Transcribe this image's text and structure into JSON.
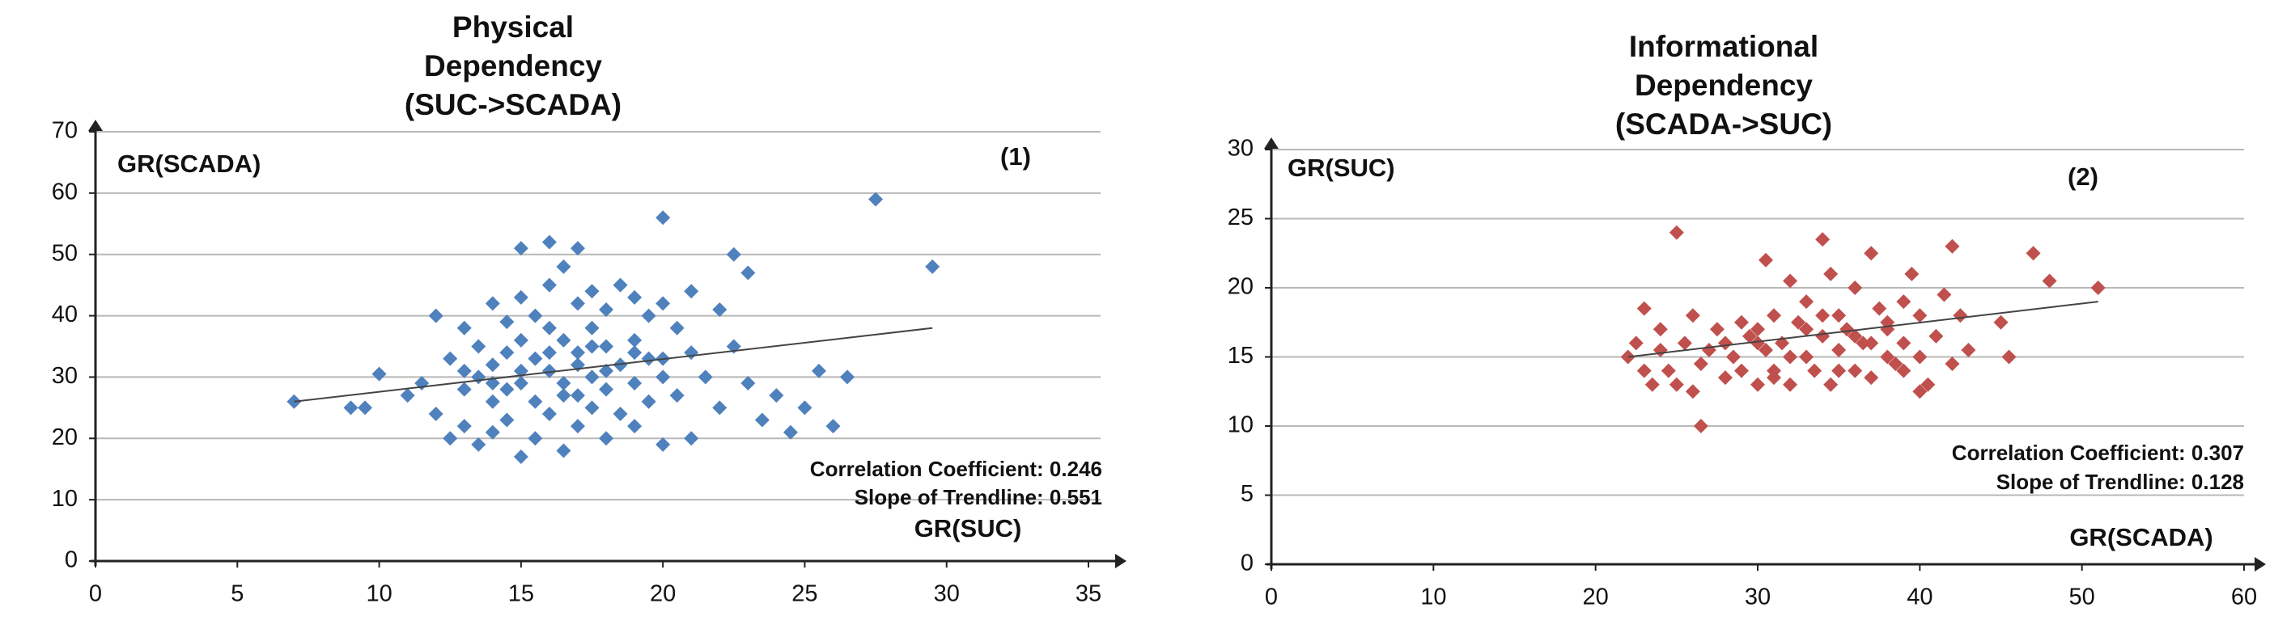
{
  "chart_data": [
    {
      "type": "scatter",
      "title": [
        "Physical",
        "Dependency",
        "(SUC->SCADA)"
      ],
      "x_label": "GR(SUC)",
      "y_label": "GR(SCADA)",
      "panel_label": "(1)",
      "annotations": [
        "Correlation Coefficient: 0.246",
        "Slope of Trendline: 0.551"
      ],
      "color": "#4f81bd",
      "grid": true,
      "xlim": [
        0,
        35
      ],
      "xticks": [
        0,
        5,
        10,
        15,
        20,
        25,
        30,
        35
      ],
      "ylim": [
        0,
        70
      ],
      "yticks": [
        0,
        10,
        20,
        30,
        40,
        50,
        60,
        70
      ],
      "trendline": {
        "x": [
          7,
          29.5
        ],
        "y": [
          26,
          38
        ]
      },
      "x": [
        7,
        9,
        9.5,
        10,
        11,
        11.5,
        12,
        12,
        12.5,
        12.5,
        13,
        13,
        13,
        13.5,
        13.5,
        13.5,
        14,
        14,
        14,
        14,
        14.5,
        14.5,
        14.5,
        14.5,
        15,
        15,
        15,
        15,
        15,
        15.5,
        15.5,
        15.5,
        15.5,
        16,
        16,
        16,
        16,
        16,
        16.5,
        16.5,
        16.5,
        16.5,
        17,
        17,
        17,
        17,
        17,
        17.5,
        17.5,
        17.5,
        17.5,
        18,
        18,
        18,
        18,
        18.5,
        18.5,
        18.5,
        19,
        19,
        19,
        19,
        19.5,
        19.5,
        19.5,
        20,
        20,
        20,
        20,
        20.5,
        20.5,
        21,
        21,
        21,
        21.5,
        22,
        22,
        22.5,
        22.5,
        23,
        23,
        23.5,
        24,
        24.5,
        25,
        25.5,
        26,
        26.5,
        27.5,
        29.5,
        15,
        16,
        17,
        18,
        19,
        20,
        14,
        13,
        16.5,
        17.5
      ],
      "y": [
        26,
        25,
        25,
        30.5,
        27,
        29,
        40,
        24,
        20,
        33,
        38,
        28,
        22,
        35,
        30,
        19,
        42,
        32,
        26,
        21,
        39,
        34,
        28,
        23,
        51,
        43,
        36,
        29,
        17,
        40,
        33,
        26,
        20,
        52,
        45,
        38,
        31,
        24,
        48,
        36,
        29,
        18,
        51,
        42,
        34,
        27,
        22,
        44,
        38,
        30,
        25,
        41,
        35,
        28,
        20,
        45,
        32,
        24,
        43,
        36,
        29,
        22,
        40,
        33,
        26,
        56,
        42,
        30,
        19,
        38,
        27,
        44,
        34,
        20,
        30,
        41,
        25,
        50,
        35,
        47,
        29,
        23,
        27,
        21,
        25,
        31,
        22,
        30,
        59,
        48,
        31,
        34,
        32,
        31,
        34,
        33,
        29,
        31,
        27,
        35
      ]
    },
    {
      "type": "scatter",
      "title": [
        "Informational",
        "Dependency",
        "(SCADA->SUC)"
      ],
      "x_label": "GR(SCADA)",
      "y_label": "GR(SUC)",
      "panel_label": "(2)",
      "annotations": [
        "Correlation Coefficient: 0.307",
        "Slope of Trendline: 0.128"
      ],
      "color": "#c0504d",
      "grid": true,
      "xlim": [
        0,
        60
      ],
      "xticks": [
        0,
        10,
        20,
        30,
        40,
        50,
        60
      ],
      "ylim": [
        0,
        30
      ],
      "yticks": [
        0,
        5,
        10,
        15,
        20,
        25,
        30
      ],
      "trendline": {
        "x": [
          22,
          51
        ],
        "y": [
          15,
          19
        ]
      },
      "x": [
        22,
        22.5,
        23,
        23,
        23.5,
        24,
        24,
        24.5,
        25,
        25,
        25.5,
        26,
        26,
        26.5,
        26.5,
        27,
        27.5,
        28,
        28,
        28.5,
        29,
        29,
        29.5,
        30,
        30,
        30.5,
        30.5,
        31,
        31,
        31.5,
        32,
        32,
        32.5,
        33,
        33,
        33.5,
        34,
        34,
        34.5,
        34.5,
        35,
        35,
        35.5,
        36,
        36,
        36.5,
        37,
        37,
        37.5,
        38,
        38,
        38.5,
        39,
        39,
        39.5,
        40,
        40,
        40.5,
        41,
        41.5,
        42,
        42,
        42.5,
        43,
        45,
        45.5,
        47,
        48,
        51,
        30,
        32,
        34,
        36,
        38,
        40,
        33,
        35,
        37,
        39,
        31
      ],
      "y": [
        15,
        16,
        18.5,
        14,
        13,
        17,
        15.5,
        14,
        24,
        13,
        16,
        18,
        12.5,
        10,
        14.5,
        15.5,
        17,
        13.5,
        16,
        15,
        17.5,
        14,
        16.5,
        17,
        13,
        22,
        15.5,
        18,
        14,
        16,
        20.5,
        13,
        17.5,
        15,
        19,
        14,
        23.5,
        16.5,
        21,
        13,
        18,
        15.5,
        17,
        14,
        20,
        16,
        22.5,
        13.5,
        18.5,
        15,
        17,
        14.5,
        19,
        16,
        21,
        18,
        15,
        13,
        16.5,
        19.5,
        23,
        14.5,
        18,
        15.5,
        17.5,
        15,
        22.5,
        20.5,
        20,
        16,
        15,
        18,
        16.5,
        17.5,
        12.5,
        17,
        14,
        16,
        14,
        13.5
      ]
    }
  ]
}
